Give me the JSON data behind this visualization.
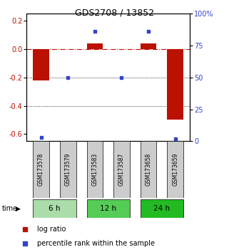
{
  "title": "GDS2708 / 13852",
  "samples": [
    "GSM173578",
    "GSM173579",
    "GSM173583",
    "GSM173587",
    "GSM173658",
    "GSM173659"
  ],
  "log_ratios": [
    -0.22,
    0.0,
    0.04,
    0.0,
    0.04,
    -0.5
  ],
  "percentile_ranks": [
    3.0,
    50.0,
    86.0,
    50.0,
    86.0,
    2.0
  ],
  "groups": [
    {
      "label": "6 h",
      "indices": [
        0,
        1
      ],
      "color": "#aaddaa"
    },
    {
      "label": "12 h",
      "indices": [
        2,
        3
      ],
      "color": "#55cc55"
    },
    {
      "label": "24 h",
      "indices": [
        4,
        5
      ],
      "color": "#22bb22"
    }
  ],
  "ylim_left": [
    -0.65,
    0.25
  ],
  "ylim_right": [
    0,
    100
  ],
  "yticks_left": [
    0.2,
    0.0,
    -0.2,
    -0.4,
    -0.6
  ],
  "yticks_right": [
    100,
    75,
    50,
    25,
    0
  ],
  "hline_y": 0.0,
  "dotted_lines": [
    -0.2,
    -0.4
  ],
  "bar_color": "#bb1100",
  "percentile_color": "#3344cc",
  "bar_width": 0.6,
  "background_color": "#ffffff",
  "plot_bg_color": "#ffffff",
  "sample_box_color": "#cccccc",
  "title_fontsize": 9,
  "tick_fontsize": 7,
  "label_fontsize": 7,
  "legend_fontsize": 7
}
